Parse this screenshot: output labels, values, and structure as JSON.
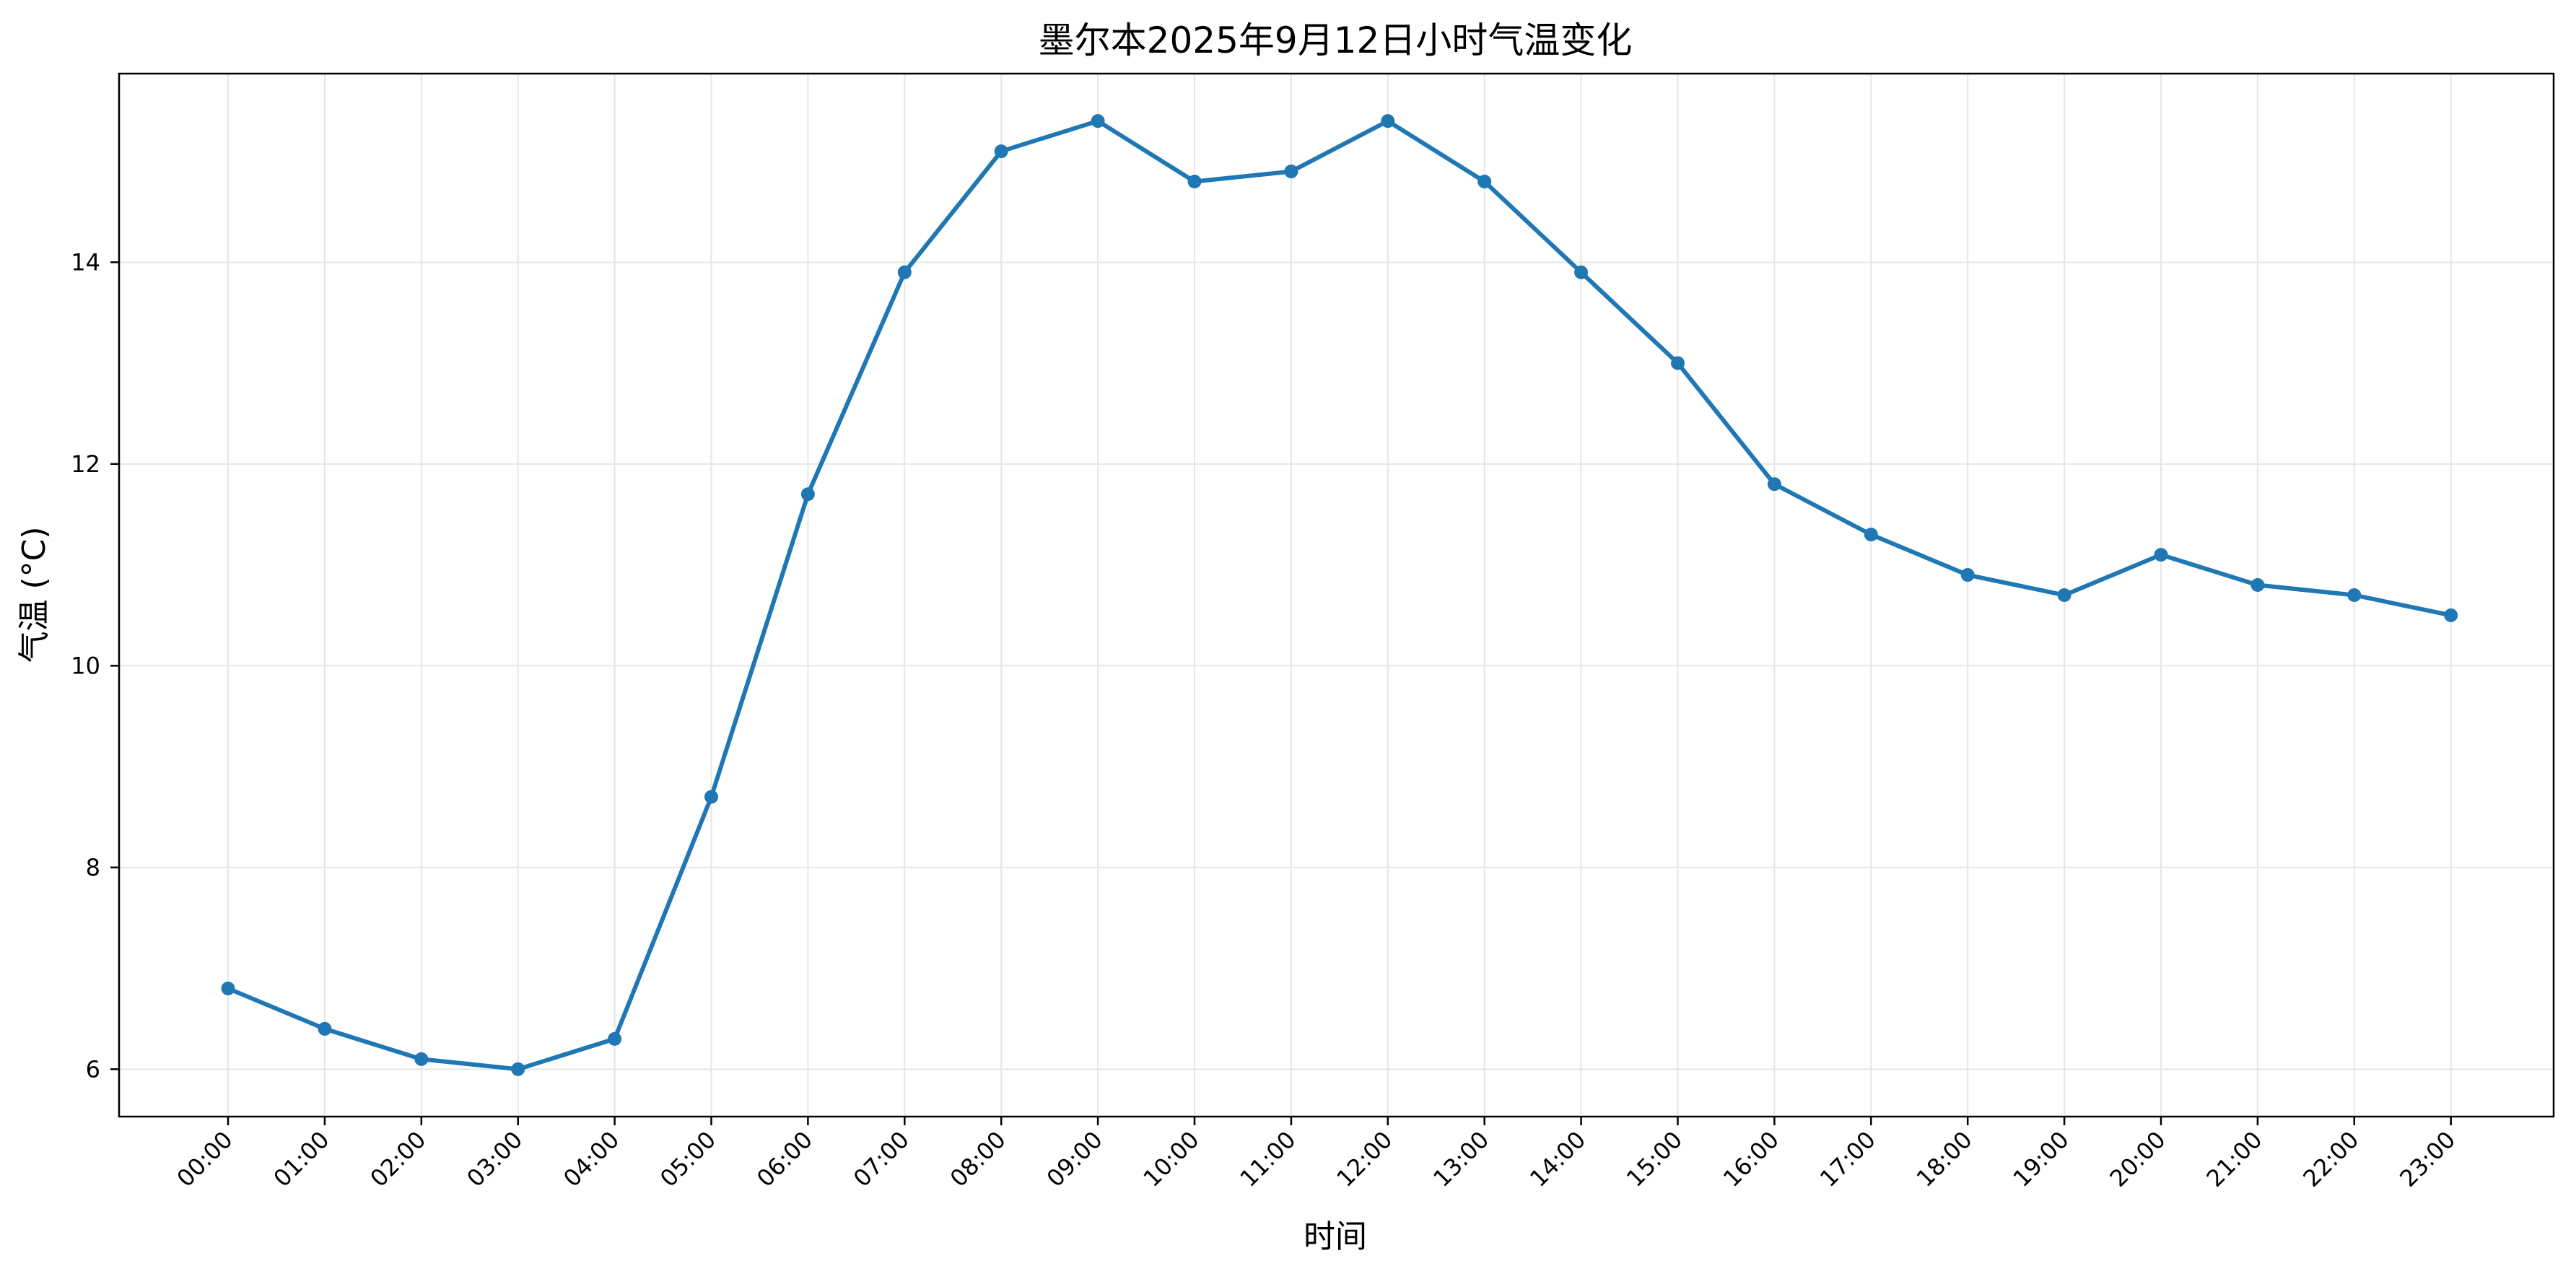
{
  "chart_data": {
    "type": "line",
    "title": "墨尔本2025年9月12日小时气温变化",
    "xlabel": "时间",
    "ylabel": "气温 (°C)",
    "categories": [
      "00:00",
      "01:00",
      "02:00",
      "03:00",
      "04:00",
      "05:00",
      "06:00",
      "07:00",
      "08:00",
      "09:00",
      "10:00",
      "11:00",
      "12:00",
      "13:00",
      "14:00",
      "15:00",
      "16:00",
      "17:00",
      "18:00",
      "19:00",
      "20:00",
      "21:00",
      "22:00",
      "23:00"
    ],
    "series": [
      {
        "values": [
          6.8,
          6.4,
          6.1,
          6.0,
          6.3,
          8.7,
          11.7,
          13.9,
          15.1,
          15.4,
          14.8,
          14.9,
          15.4,
          14.8,
          13.9,
          13.0,
          11.8,
          11.3,
          10.9,
          10.7,
          11.1,
          10.8,
          10.7,
          10.5
        ],
        "color": "#1f77b4",
        "marker": "circle"
      }
    ],
    "y_ticks": [
      6,
      8,
      10,
      12,
      14
    ],
    "ylim": [
      5.53,
      15.87
    ],
    "grid": true,
    "legend": "none"
  }
}
